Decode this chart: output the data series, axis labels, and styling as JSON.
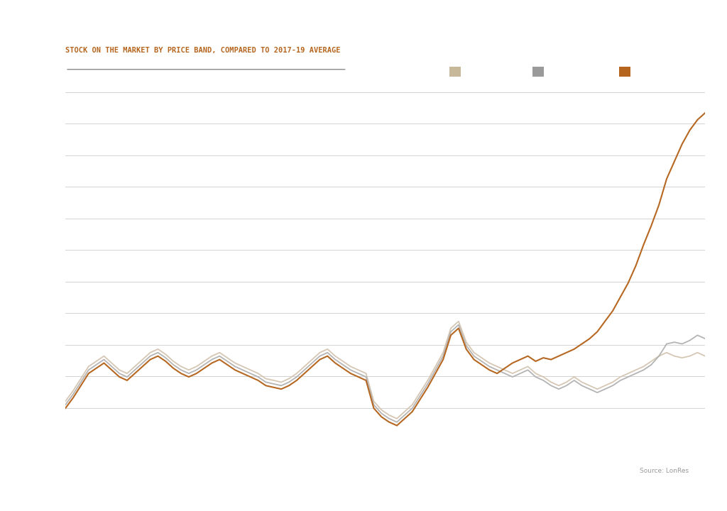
{
  "title": "STOCK ON THE MARKET BY PRICE BAND, COMPARED TO 2017-19 AVERAGE",
  "background_color": "#ffffff",
  "title_color": "#b5651d",
  "source_text": "Source: LonRes",
  "source_color": "#999999",
  "line_colors": [
    "#d4c4b0",
    "#b0b0b0",
    "#b5651d"
  ],
  "legend_colors": [
    "#c8b89a",
    "#9a9a9a",
    "#b5651d"
  ],
  "grid_color": "#cccccc",
  "n_points": 84,
  "series1": [
    62,
    68,
    75,
    82,
    85,
    88,
    84,
    80,
    78,
    82,
    86,
    90,
    92,
    89,
    85,
    82,
    80,
    82,
    85,
    88,
    90,
    87,
    84,
    82,
    80,
    78,
    75,
    74,
    73,
    75,
    78,
    82,
    86,
    90,
    92,
    88,
    85,
    82,
    80,
    78,
    62,
    57,
    54,
    52,
    56,
    60,
    67,
    74,
    82,
    90,
    104,
    108,
    96,
    90,
    87,
    84,
    82,
    80,
    78,
    80,
    82,
    78,
    76,
    73,
    71,
    73,
    76,
    73,
    71,
    69,
    71,
    73,
    76,
    78,
    80,
    82,
    85,
    88,
    90,
    88,
    87,
    88,
    90,
    88
  ],
  "series2": [
    60,
    66,
    73,
    80,
    83,
    86,
    82,
    78,
    76,
    80,
    84,
    88,
    90,
    87,
    83,
    80,
    78,
    80,
    83,
    86,
    88,
    85,
    82,
    80,
    78,
    76,
    73,
    72,
    71,
    73,
    76,
    80,
    84,
    88,
    90,
    86,
    83,
    80,
    78,
    76,
    60,
    55,
    52,
    50,
    54,
    58,
    65,
    72,
    80,
    88,
    102,
    106,
    94,
    88,
    85,
    82,
    80,
    78,
    76,
    78,
    80,
    76,
    74,
    71,
    69,
    71,
    74,
    71,
    69,
    67,
    69,
    71,
    74,
    76,
    78,
    80,
    83,
    88,
    95,
    96,
    95,
    97,
    100,
    98
  ],
  "series3": [
    58,
    64,
    71,
    78,
    81,
    84,
    80,
    76,
    74,
    78,
    82,
    86,
    88,
    85,
    81,
    78,
    76,
    78,
    81,
    84,
    86,
    83,
    80,
    78,
    76,
    74,
    71,
    70,
    69,
    71,
    74,
    78,
    82,
    86,
    88,
    84,
    81,
    78,
    76,
    74,
    58,
    53,
    50,
    48,
    52,
    56,
    63,
    70,
    78,
    86,
    100,
    104,
    92,
    86,
    83,
    80,
    78,
    81,
    84,
    86,
    88,
    85,
    87,
    86,
    88,
    90,
    92,
    95,
    98,
    102,
    108,
    114,
    122,
    130,
    140,
    152,
    163,
    175,
    190,
    200,
    210,
    218,
    224,
    228
  ],
  "ylim_min": 40,
  "ylim_max": 240
}
